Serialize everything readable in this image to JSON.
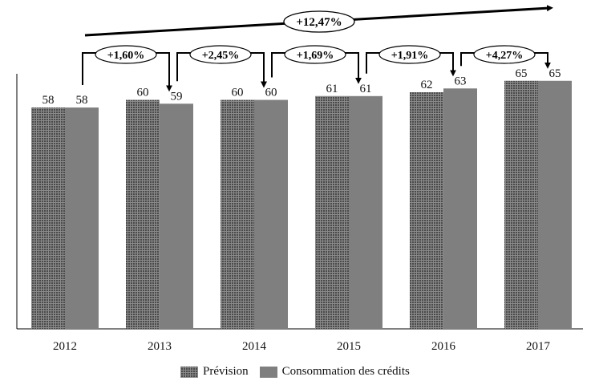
{
  "chart_data": {
    "type": "bar",
    "title": "",
    "xlabel": "",
    "ylabel": "",
    "categories": [
      "2012",
      "2013",
      "2014",
      "2015",
      "2016",
      "2017"
    ],
    "series": [
      {
        "name": "Prévision",
        "values": [
          58,
          60,
          60,
          61,
          62,
          65
        ],
        "color": "#4a4a4a",
        "pattern": "hatch"
      },
      {
        "name": "Consommation des crédits",
        "values": [
          58,
          59,
          60,
          61,
          63,
          65
        ],
        "color": "#7f7f7f",
        "pattern": "solid"
      }
    ],
    "ylim": [
      0,
      66
    ],
    "grid": false,
    "legend_position": "bottom",
    "annotations": {
      "yearly_changes": [
        "+1,60%",
        "+2,45%",
        "+1,69%",
        "+1,91%",
        "+4,27%"
      ],
      "total_change": "+12,47%"
    }
  }
}
